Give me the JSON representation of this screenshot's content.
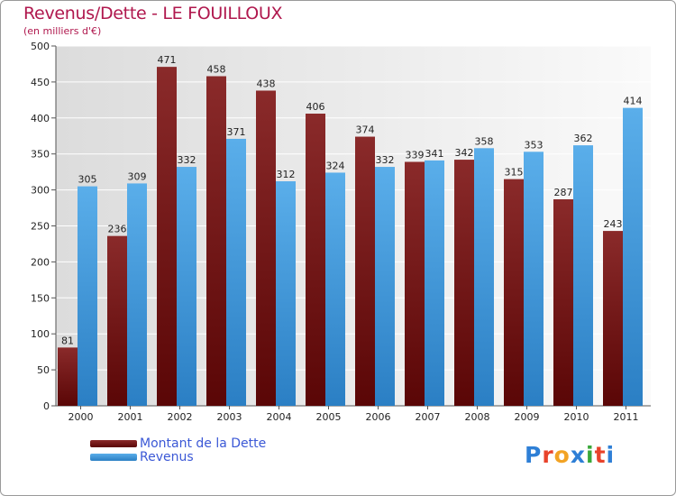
{
  "chart_data": {
    "type": "bar",
    "title": "Revenus/Dette - LE FOUILLOUX",
    "subtitle": "(en milliers d'€)",
    "categories": [
      "2000",
      "2001",
      "2002",
      "2003",
      "2004",
      "2005",
      "2006",
      "2007",
      "2008",
      "2009",
      "2010",
      "2011"
    ],
    "series": [
      {
        "name": "Montant de la Dette",
        "color": "#7a1e1e",
        "values": [
          81,
          236,
          471,
          458,
          438,
          406,
          374,
          339,
          342,
          315,
          287,
          243
        ]
      },
      {
        "name": "Revenus",
        "color": "#3d9be0",
        "values": [
          305,
          309,
          332,
          371,
          312,
          324,
          332,
          341,
          358,
          353,
          362,
          414
        ]
      }
    ],
    "ylim": [
      0,
      500
    ],
    "yticks": [
      0,
      50,
      100,
      150,
      200,
      250,
      300,
      350,
      400,
      450,
      500
    ],
    "grid": true,
    "legend": "bottom-left"
  },
  "logo": {
    "text": "Proxiti",
    "colors": [
      "#2e7fd6",
      "#e8432b",
      "#f2a324",
      "#2e7fd6",
      "#3aa83a",
      "#e8432b",
      "#2e7fd6"
    ]
  }
}
